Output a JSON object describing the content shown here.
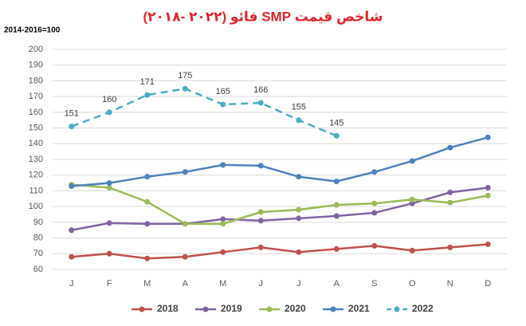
{
  "chart_data": {
    "type": "line",
    "title": "شاخص قیمت SMP فائو (۲۰۲۲ -۲۰۱۸)",
    "y_label": "2014-2016=100",
    "categories": [
      "J",
      "F",
      "M",
      "A",
      "M",
      "J",
      "J",
      "A",
      "S",
      "O",
      "N",
      "D"
    ],
    "series": [
      {
        "name": "2018",
        "color": "#c0504d",
        "values": [
          68,
          70,
          67,
          68,
          71,
          74,
          71,
          73,
          75,
          72,
          74,
          76
        ]
      },
      {
        "name": "2019",
        "color": "#8064a2",
        "values": [
          85,
          89.5,
          89,
          89,
          92,
          91,
          92.5,
          94,
          96,
          102,
          109,
          112
        ]
      },
      {
        "name": "2020",
        "color": "#9bbb59",
        "values": [
          114,
          112,
          103,
          89,
          89,
          96.5,
          98,
          101,
          102,
          104.5,
          102.5,
          107
        ]
      },
      {
        "name": "2021",
        "color": "#4f81bd",
        "values": [
          113,
          115,
          119,
          122,
          126.5,
          126,
          119,
          116,
          122,
          129,
          137.5,
          144
        ]
      },
      {
        "name": "2022",
        "color": "#4bacc6",
        "dashed": true,
        "data_labels": true,
        "values": [
          151,
          160,
          171,
          175,
          165,
          166,
          155,
          145,
          null,
          null,
          null,
          null
        ]
      }
    ],
    "ylim": [
      60,
      200
    ],
    "yticks": [
      60,
      70,
      80,
      90,
      100,
      110,
      120,
      130,
      140,
      150,
      160,
      170,
      180,
      190,
      200
    ],
    "grid": true,
    "legend": "bottom"
  }
}
